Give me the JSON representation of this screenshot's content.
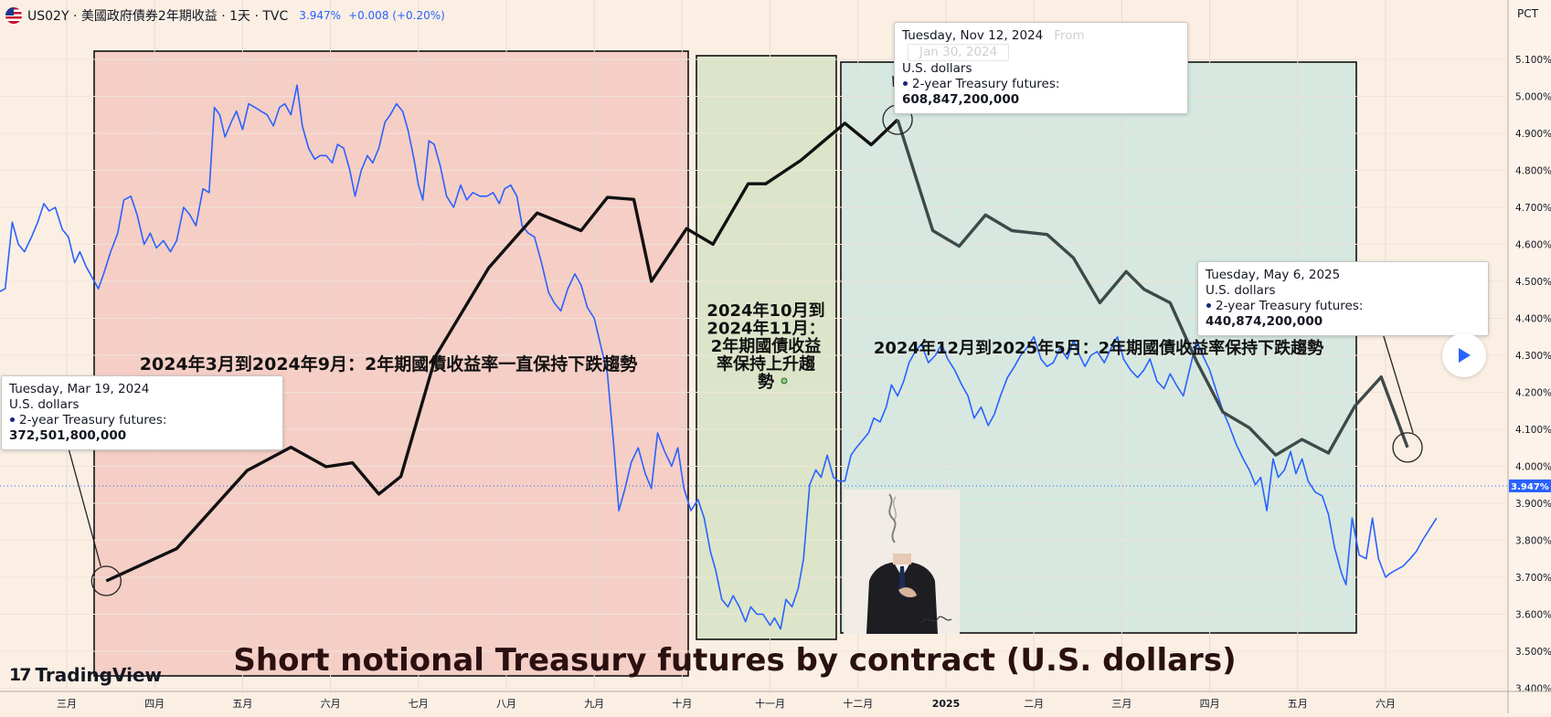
{
  "header": {
    "symbol": "US02Y · 美國政府債券2年期收益 · 1天 · TVC",
    "last": "3.947%",
    "change": "+0.008 (+0.20%)"
  },
  "axis": {
    "unit_label": "PCT",
    "current_label": "3.947%"
  },
  "brand": "TradingView",
  "colors": {
    "yield_line": "#2962ff",
    "futures_line": "#111111",
    "futures_line_late": "#3d4a4a",
    "zone_decline_1": "#f3c8c1",
    "zone_rise": "#d6e3c4",
    "zone_decline_2": "#cfe6df"
  },
  "annotations": {
    "zone1": "2024年3月到2024年9月：2年期國債收益率一直保持下跌趨勢",
    "zone2_lines": [
      "2024年10月到",
      "2024年11月：",
      "2年期國債收益",
      "率保持上升趨",
      "勢"
    ],
    "zone3": "2024年12月到2025年5月：2年期國債收益率保持下跌趨勢",
    "bottom_title": "Short notional Treasury futures by contract (U.S. dollars)"
  },
  "tooltips": [
    {
      "date": "Tuesday, Mar 19, 2024",
      "unit": "U.S. dollars",
      "series": "2-year Treasury futures:",
      "value": "372,501,800,000"
    },
    {
      "date": "Tuesday, Nov 12, 2024",
      "unit": "U.S. dollars",
      "series": "2-year Treasury futures:",
      "value": "608,847,200,000",
      "ghost_from": "From",
      "ghost_date": "Jan 30, 2024"
    },
    {
      "date": "Tuesday, May 6, 2025",
      "unit": "U.S. dollars",
      "series": "2-year Treasury futures:",
      "value": "440,874,200,000"
    }
  ],
  "chart_data": {
    "type": "line",
    "title": "US02Y · 美國政府債券2年期收益 · 1天 · TVC",
    "ylabel": "PCT",
    "ylim": [
      3.4,
      5.15
    ],
    "y_ticks": [
      "5.100%",
      "5.000%",
      "4.900%",
      "4.800%",
      "4.700%",
      "4.600%",
      "4.500%",
      "4.400%",
      "4.300%",
      "4.200%",
      "4.100%",
      "4.000%",
      "3.900%",
      "3.800%",
      "3.700%",
      "3.600%",
      "3.500%",
      "3.400%"
    ],
    "x_ticks": [
      "三月",
      "四月",
      "五月",
      "六月",
      "七月",
      "八月",
      "九月",
      "十月",
      "十一月",
      "十二月",
      "2025",
      "二月",
      "三月",
      "四月",
      "五月",
      "六月"
    ],
    "x_range_months": [
      1.15,
      17.8
    ],
    "series": [
      {
        "name": "US02Y",
        "axis": "PCT",
        "points": [
          [
            1.15,
            4.44
          ],
          [
            1.22,
            4.47
          ],
          [
            1.3,
            4.48
          ],
          [
            1.38,
            4.66
          ],
          [
            1.45,
            4.6
          ],
          [
            1.52,
            4.58
          ],
          [
            1.6,
            4.62
          ],
          [
            1.67,
            4.66
          ],
          [
            1.74,
            4.71
          ],
          [
            1.8,
            4.69
          ],
          [
            1.87,
            4.7
          ],
          [
            1.95,
            4.64
          ],
          [
            2.02,
            4.62
          ],
          [
            2.09,
            4.55
          ],
          [
            2.15,
            4.58
          ],
          [
            2.22,
            4.54
          ],
          [
            2.29,
            4.51
          ],
          [
            2.36,
            4.48
          ],
          [
            2.42,
            4.52
          ],
          [
            2.5,
            4.58
          ],
          [
            2.58,
            4.63
          ],
          [
            2.65,
            4.72
          ],
          [
            2.73,
            4.73
          ],
          [
            2.8,
            4.68
          ],
          [
            2.88,
            4.6
          ],
          [
            2.95,
            4.63
          ],
          [
            3.02,
            4.59
          ],
          [
            3.1,
            4.61
          ],
          [
            3.18,
            4.58
          ],
          [
            3.25,
            4.61
          ],
          [
            3.33,
            4.7
          ],
          [
            3.4,
            4.68
          ],
          [
            3.47,
            4.65
          ],
          [
            3.55,
            4.75
          ],
          [
            3.62,
            4.74
          ],
          [
            3.68,
            4.97
          ],
          [
            3.74,
            4.95
          ],
          [
            3.8,
            4.89
          ],
          [
            3.87,
            4.93
          ],
          [
            3.93,
            4.96
          ],
          [
            4.0,
            4.91
          ],
          [
            4.07,
            4.98
          ],
          [
            4.14,
            4.97
          ],
          [
            4.21,
            4.96
          ],
          [
            4.28,
            4.95
          ],
          [
            4.35,
            4.92
          ],
          [
            4.42,
            4.97
          ],
          [
            4.48,
            4.98
          ],
          [
            4.55,
            4.95
          ],
          [
            4.62,
            5.03
          ],
          [
            4.68,
            4.92
          ],
          [
            4.75,
            4.86
          ],
          [
            4.82,
            4.83
          ],
          [
            4.88,
            4.84
          ],
          [
            4.95,
            4.84
          ],
          [
            5.02,
            4.82
          ],
          [
            5.08,
            4.87
          ],
          [
            5.15,
            4.86
          ],
          [
            5.22,
            4.8
          ],
          [
            5.28,
            4.73
          ],
          [
            5.35,
            4.8
          ],
          [
            5.42,
            4.84
          ],
          [
            5.48,
            4.82
          ],
          [
            5.55,
            4.86
          ],
          [
            5.62,
            4.93
          ],
          [
            5.68,
            4.95
          ],
          [
            5.75,
            4.98
          ],
          [
            5.82,
            4.96
          ],
          [
            5.88,
            4.91
          ],
          [
            5.95,
            4.83
          ],
          [
            6.0,
            4.76
          ],
          [
            6.05,
            4.72
          ],
          [
            6.12,
            4.88
          ],
          [
            6.18,
            4.87
          ],
          [
            6.25,
            4.81
          ],
          [
            6.32,
            4.73
          ],
          [
            6.4,
            4.7
          ],
          [
            6.48,
            4.76
          ],
          [
            6.55,
            4.72
          ],
          [
            6.62,
            4.74
          ],
          [
            6.7,
            4.73
          ],
          [
            6.78,
            4.73
          ],
          [
            6.85,
            4.74
          ],
          [
            6.92,
            4.71
          ],
          [
            6.98,
            4.75
          ],
          [
            7.05,
            4.76
          ],
          [
            7.12,
            4.73
          ],
          [
            7.18,
            4.65
          ],
          [
            7.25,
            4.63
          ],
          [
            7.32,
            4.62
          ],
          [
            7.4,
            4.55
          ],
          [
            7.48,
            4.47
          ],
          [
            7.55,
            4.44
          ],
          [
            7.62,
            4.42
          ],
          [
            7.7,
            4.48
          ],
          [
            7.78,
            4.52
          ],
          [
            7.85,
            4.49
          ],
          [
            7.92,
            4.43
          ],
          [
            8.0,
            4.4
          ],
          [
            8.08,
            4.32
          ],
          [
            8.15,
            4.25
          ],
          [
            8.22,
            4.06
          ],
          [
            8.28,
            3.88
          ],
          [
            8.35,
            3.94
          ],
          [
            8.42,
            4.01
          ],
          [
            8.5,
            4.05
          ],
          [
            8.58,
            3.98
          ],
          [
            8.65,
            3.94
          ],
          [
            8.72,
            4.09
          ],
          [
            8.8,
            4.04
          ],
          [
            8.88,
            4.0
          ],
          [
            8.95,
            4.05
          ],
          [
            9.02,
            3.94
          ],
          [
            9.1,
            3.88
          ],
          [
            9.18,
            3.91
          ],
          [
            9.25,
            3.86
          ],
          [
            9.32,
            3.77
          ],
          [
            9.38,
            3.72
          ],
          [
            9.45,
            3.64
          ],
          [
            9.52,
            3.62
          ],
          [
            9.58,
            3.65
          ],
          [
            9.65,
            3.62
          ],
          [
            9.72,
            3.58
          ],
          [
            9.78,
            3.62
          ],
          [
            9.85,
            3.6
          ],
          [
            9.92,
            3.6
          ],
          [
            10.0,
            3.57
          ],
          [
            10.05,
            3.59
          ],
          [
            10.12,
            3.56
          ],
          [
            10.18,
            3.64
          ],
          [
            10.25,
            3.62
          ],
          [
            10.32,
            3.67
          ],
          [
            10.38,
            3.75
          ],
          [
            10.45,
            3.95
          ],
          [
            10.52,
            3.99
          ],
          [
            10.58,
            3.97
          ],
          [
            10.65,
            4.03
          ],
          [
            10.72,
            3.97
          ],
          [
            10.78,
            3.96
          ],
          [
            10.85,
            3.96
          ],
          [
            10.92,
            4.03
          ],
          [
            10.98,
            4.05
          ],
          [
            11.05,
            4.07
          ],
          [
            11.12,
            4.09
          ],
          [
            11.18,
            4.13
          ],
          [
            11.25,
            4.12
          ],
          [
            11.32,
            4.16
          ],
          [
            11.38,
            4.22
          ],
          [
            11.45,
            4.19
          ],
          [
            11.52,
            4.23
          ],
          [
            11.58,
            4.28
          ],
          [
            11.65,
            4.31
          ],
          [
            11.72,
            4.33
          ],
          [
            11.8,
            4.28
          ],
          [
            11.88,
            4.3
          ],
          [
            11.95,
            4.33
          ],
          [
            12.02,
            4.29
          ],
          [
            12.1,
            4.26
          ],
          [
            12.18,
            4.22
          ],
          [
            12.25,
            4.19
          ],
          [
            12.32,
            4.13
          ],
          [
            12.4,
            4.16
          ],
          [
            12.48,
            4.11
          ],
          [
            12.55,
            4.14
          ],
          [
            12.62,
            4.19
          ],
          [
            12.7,
            4.24
          ],
          [
            12.78,
            4.27
          ],
          [
            12.85,
            4.3
          ],
          [
            12.92,
            4.32
          ],
          [
            13.0,
            4.35
          ],
          [
            13.08,
            4.29
          ],
          [
            13.15,
            4.27
          ],
          [
            13.22,
            4.28
          ],
          [
            13.3,
            4.32
          ],
          [
            13.38,
            4.29
          ],
          [
            13.45,
            4.34
          ],
          [
            13.52,
            4.3
          ],
          [
            13.58,
            4.27
          ],
          [
            13.65,
            4.3
          ],
          [
            13.72,
            4.31
          ],
          [
            13.8,
            4.28
          ],
          [
            13.88,
            4.32
          ],
          [
            13.95,
            4.35
          ],
          [
            14.02,
            4.29
          ],
          [
            14.1,
            4.26
          ],
          [
            14.18,
            4.24
          ],
          [
            14.25,
            4.26
          ],
          [
            14.32,
            4.29
          ],
          [
            14.4,
            4.23
          ],
          [
            14.48,
            4.21
          ],
          [
            14.55,
            4.25
          ],
          [
            14.62,
            4.22
          ],
          [
            14.7,
            4.19
          ],
          [
            14.78,
            4.27
          ],
          [
            14.85,
            4.34
          ],
          [
            14.92,
            4.3
          ],
          [
            15.0,
            4.26
          ],
          [
            15.08,
            4.2
          ],
          [
            15.15,
            4.15
          ],
          [
            15.22,
            4.11
          ],
          [
            15.3,
            4.06
          ],
          [
            15.38,
            4.02
          ],
          [
            15.45,
            3.99
          ],
          [
            15.52,
            3.95
          ],
          [
            15.58,
            3.97
          ],
          [
            15.65,
            3.88
          ],
          [
            15.72,
            4.02
          ],
          [
            15.78,
            3.97
          ],
          [
            15.85,
            3.99
          ],
          [
            15.92,
            4.04
          ],
          [
            15.98,
            3.98
          ],
          [
            16.05,
            4.02
          ],
          [
            16.12,
            3.96
          ],
          [
            16.2,
            3.93
          ],
          [
            16.28,
            3.92
          ],
          [
            16.35,
            3.87
          ],
          [
            16.42,
            3.78
          ],
          [
            16.5,
            3.71
          ],
          [
            16.55,
            3.68
          ],
          [
            16.62,
            3.86
          ],
          [
            16.7,
            3.76
          ],
          [
            16.78,
            3.75
          ],
          [
            16.85,
            3.86
          ],
          [
            16.92,
            3.75
          ],
          [
            17.0,
            3.7
          ],
          [
            17.05,
            3.71
          ],
          [
            17.12,
            3.72
          ],
          [
            17.2,
            3.73
          ],
          [
            17.28,
            3.75
          ],
          [
            17.35,
            3.77
          ],
          [
            17.42,
            3.8
          ],
          [
            17.5,
            3.83
          ],
          [
            17.58,
            3.86
          ]
        ]
      },
      {
        "name": "2-year Treasury futures",
        "axis": "none (secondary scale not shown)",
        "points": [
          [
            2.45,
            372501800000
          ],
          [
            3.25,
            389000000000
          ],
          [
            4.05,
            429000000000
          ],
          [
            4.55,
            441000000000
          ],
          [
            4.95,
            431000000000
          ],
          [
            5.25,
            433000000000
          ],
          [
            5.55,
            417000000000
          ],
          [
            5.8,
            426000000000
          ],
          [
            6.2,
            488000000000
          ],
          [
            6.8,
            533000000000
          ],
          [
            7.35,
            561000000000
          ],
          [
            7.85,
            552000000000
          ],
          [
            8.15,
            569000000000
          ],
          [
            8.45,
            568000000000
          ],
          [
            8.65,
            526000000000
          ],
          [
            9.05,
            553000000000
          ],
          [
            9.35,
            545000000000
          ],
          [
            9.75,
            576000000000
          ],
          [
            9.95,
            576000000000
          ],
          [
            10.35,
            588000000000
          ],
          [
            10.85,
            607000000000
          ],
          [
            11.15,
            596000000000
          ],
          [
            11.45,
            608847200000
          ],
          [
            11.85,
            552000000000
          ],
          [
            12.15,
            544000000000
          ],
          [
            12.45,
            560000000000
          ],
          [
            12.75,
            552000000000
          ],
          [
            13.15,
            550000000000
          ],
          [
            13.45,
            538000000000
          ],
          [
            13.75,
            515000000000
          ],
          [
            14.05,
            531000000000
          ],
          [
            14.25,
            522000000000
          ],
          [
            14.55,
            515000000000
          ],
          [
            14.85,
            485000000000
          ],
          [
            15.15,
            459000000000
          ],
          [
            15.45,
            451000000000
          ],
          [
            15.75,
            437000000000
          ],
          [
            16.05,
            445000000000
          ],
          [
            16.35,
            438000000000
          ],
          [
            16.65,
            462000000000
          ],
          [
            16.95,
            477000000000
          ],
          [
            17.25,
            440874200000
          ]
        ]
      }
    ],
    "shaded_zones": [
      {
        "label": "2024年3月到2024年9月：2年期國債收益率一直保持下跌趨勢",
        "x_range": [
          2.0,
          9.85
        ]
      },
      {
        "label": "2024年10月到2024年11月：2年期國債收益率保持上升趨勢",
        "x_range": [
          10.0,
          11.45
        ]
      },
      {
        "label": "2024年12月到2025年5月：2年期國債收益率保持下跌趨勢",
        "x_range": [
          11.5,
          17.4
        ]
      }
    ]
  }
}
